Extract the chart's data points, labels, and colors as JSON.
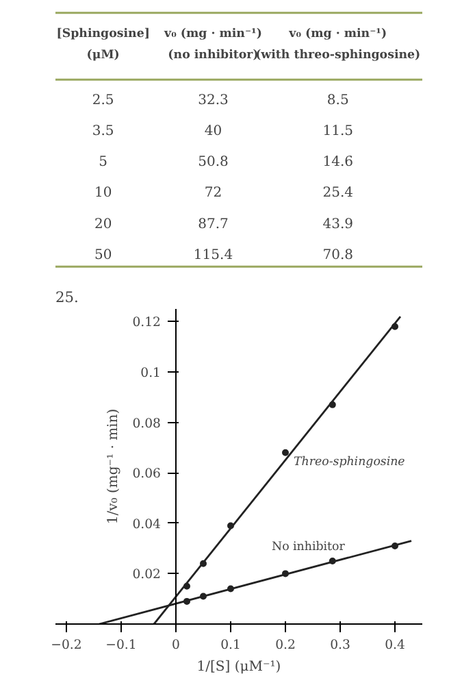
{
  "chart_data": [
    {
      "type": "other",
      "categories": [
        "[Sphingosine] (μM)",
        "v₀ (mg · min⁻¹) (no inhibitor)",
        "v₀ (mg · min⁻¹) (with threo-sphingosine)"
      ],
      "cell_labels": [
        [
          "2.5",
          "32.3",
          "8.5"
        ],
        [
          "3.5",
          "40",
          "11.5"
        ],
        [
          "5",
          "50.8",
          "14.6"
        ],
        [
          "10",
          "72",
          "25.4"
        ],
        [
          "20",
          "87.7",
          "43.9"
        ],
        [
          "50",
          "115.4",
          "70.8"
        ]
      ]
    },
    {
      "type": "scatter",
      "annotations": [
        "25."
      ],
      "xlabel": "1/[S] (μM⁻¹)",
      "ylabel": "1/v₀ (mg⁻¹ · min)",
      "xlim": [
        -0.22,
        0.45
      ],
      "ylim": [
        0,
        0.125
      ],
      "xticks": [
        -0.2,
        -0.1,
        0,
        0.1,
        0.2,
        0.3,
        0.4
      ],
      "yticks": [
        0.02,
        0.04,
        0.06,
        0.08,
        0.1,
        0.12
      ],
      "grid": false,
      "series": [
        {
          "name": "No inhibitor",
          "marker": "circle",
          "color": "#222222",
          "x": [
            0.02,
            0.05,
            0.1,
            0.2,
            0.286,
            0.4
          ],
          "values": [
            0.009,
            0.011,
            0.014,
            0.02,
            0.025,
            0.031
          ]
        },
        {
          "name": "Threo-sphingosine",
          "marker": "circle",
          "color": "#222222",
          "x": [
            0.02,
            0.05,
            0.1,
            0.2,
            0.286,
            0.4
          ],
          "values": [
            0.015,
            0.024,
            0.039,
            0.068,
            0.087,
            0.118
          ]
        },
        {
          "type": "line",
          "color": "#222222",
          "x": [
            -0.14,
            0.43
          ],
          "values": [
            0,
            0.033
          ],
          "line_style": "solid"
        },
        {
          "type": "line",
          "color": "#222222",
          "x": [
            -0.04,
            0.41
          ],
          "values": [
            0,
            0.122
          ],
          "line_style": "solid"
        }
      ]
    }
  ]
}
